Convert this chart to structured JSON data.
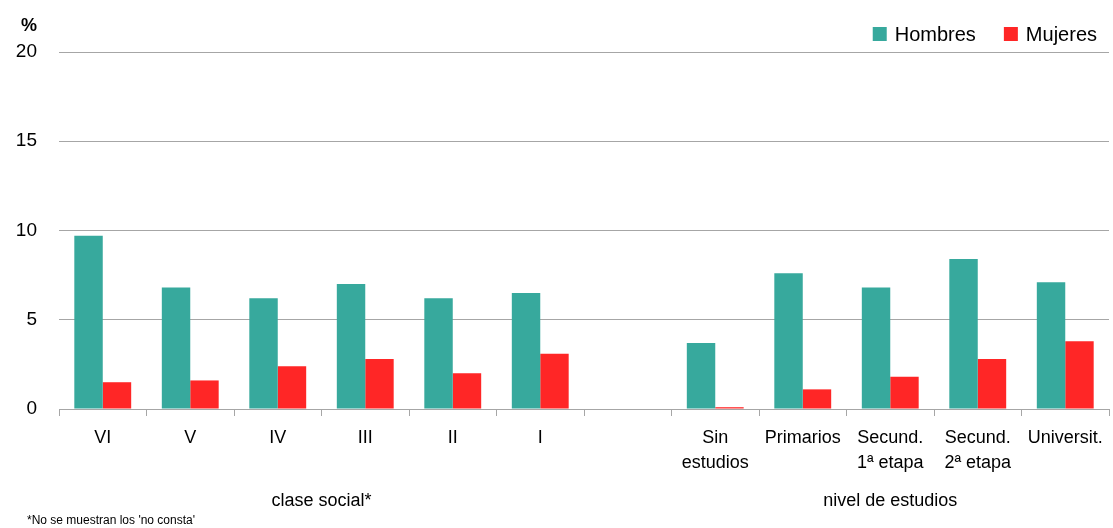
{
  "chart_data": {
    "type": "bar",
    "ylabel": "%",
    "categories": [
      "VI",
      "V",
      "IV",
      "III",
      "II",
      "I",
      null,
      "Sin estudios",
      "Primarios",
      "Secund. 1ª etapa",
      "Secund. 2ª etapa",
      "Universit."
    ],
    "series": [
      {
        "name": "Hombres",
        "color": "#37a99d",
        "values": [
          9.7,
          6.8,
          6.2,
          7.0,
          6.2,
          6.5,
          null,
          3.7,
          7.6,
          6.8,
          8.4,
          7.1
        ]
      },
      {
        "name": "Mujeres",
        "color": "#ff2626",
        "values": [
          1.5,
          1.6,
          2.4,
          2.8,
          2.0,
          3.1,
          null,
          0.1,
          1.1,
          1.8,
          2.8,
          3.8
        ]
      }
    ],
    "ylim": [
      0,
      20
    ],
    "yticks": [
      0,
      5,
      10,
      15,
      20
    ],
    "grid": "y",
    "legend": "top right",
    "annotations": [
      "clase social*",
      "nivel de estudios",
      "*No se muestran los 'no consta'"
    ]
  }
}
